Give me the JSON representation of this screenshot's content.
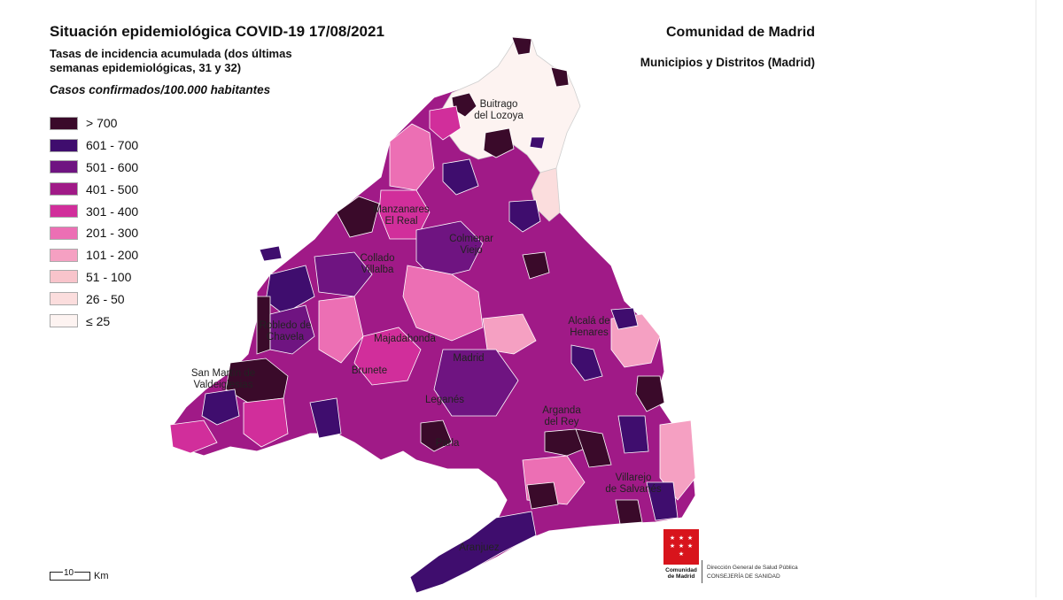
{
  "header": {
    "title": "Situación epidemiológica COVID-19  17/08/2021",
    "subtitle": "Tasas de incidencia acumulada (dos últimas\nsemanas epidemiológicas, 31 y 32)",
    "unit": "Casos confirmados/100.000 habitantes",
    "region": "Comunidad de Madrid",
    "region_sub": "Municipios y Distritos (Madrid)"
  },
  "legend": [
    {
      "label": "> 700",
      "color": "#3a0a2a"
    },
    {
      "label": "601 - 700",
      "color": "#3f0d6e"
    },
    {
      "label": "501 - 600",
      "color": "#6f1481"
    },
    {
      "label": "401 - 500",
      "color": "#a01a87"
    },
    {
      "label": "301 - 400",
      "color": "#d12e9b"
    },
    {
      "label": "201 - 300",
      "color": "#ec6fb4"
    },
    {
      "label": "101 - 200",
      "color": "#f5a0c2"
    },
    {
      "label": "51 - 100",
      "color": "#f8c4cb"
    },
    {
      "label": "26 - 50",
      "color": "#fbdddd"
    },
    {
      "label": "≤ 25",
      "color": "#fdf3f1"
    }
  ],
  "places": [
    "Buitrago\ndel Lozoya",
    "Manzanares\nEl Real",
    "Colmenar\nViejo",
    "Collado\nVillalba",
    "Alcalá de\nHenares",
    "Robledo de\nChavela",
    "Majadahonda",
    "Madrid",
    "San Martín de\nValdeiglesias",
    "Brunete",
    "Leganés",
    "Arganda\ndel Rey",
    "Parla",
    "Villarejo\nde Salvanés",
    "Aranjuez"
  ],
  "scale": {
    "value": "10",
    "unit": "Km"
  },
  "footer": {
    "logo_text": "Comunidad\nde Madrid",
    "dept_line1": "Dirección General de Salud Pública",
    "dept_line2": "CONSEJERÍA DE SANIDAD"
  }
}
